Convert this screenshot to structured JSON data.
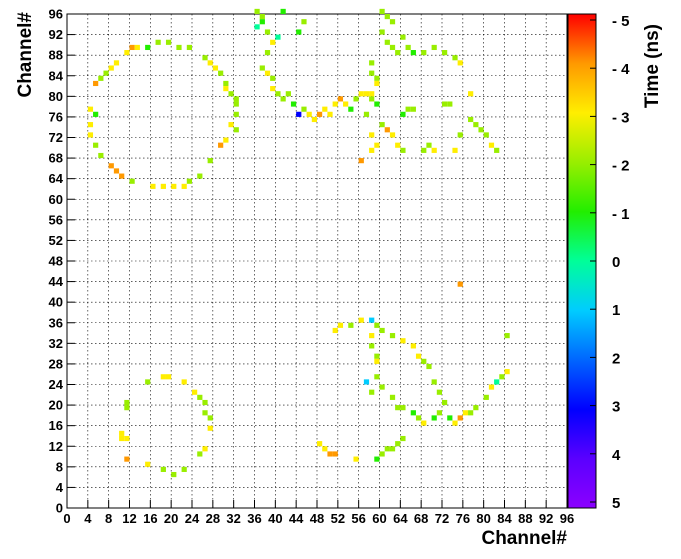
{
  "chart_data": {
    "type": "heatmap",
    "xlabel": "Channel#",
    "ylabel": "Channel#",
    "zlabel": "Time (ns)",
    "xlim": [
      0,
      96
    ],
    "ylim": [
      0,
      96
    ],
    "x_ticks": [
      "0",
      "4",
      "8",
      "12",
      "16",
      "20",
      "24",
      "28",
      "32",
      "36",
      "40",
      "44",
      "48",
      "52",
      "56",
      "60",
      "64",
      "68",
      "72",
      "76",
      "80",
      "84",
      "88",
      "92",
      "96"
    ],
    "y_ticks": [
      "0",
      "4",
      "8",
      "12",
      "16",
      "20",
      "24",
      "28",
      "32",
      "36",
      "40",
      "44",
      "48",
      "52",
      "56",
      "60",
      "64",
      "68",
      "72",
      "76",
      "80",
      "84",
      "88",
      "92",
      "96"
    ],
    "z_ticks": [
      {
        "label": "- 5",
        "value": -5
      },
      {
        "label": "- 4",
        "value": -4
      },
      {
        "label": "- 3",
        "value": -3
      },
      {
        "label": "- 2",
        "value": -2
      },
      {
        "label": "- 1",
        "value": -1
      },
      {
        "label": "0",
        "value": 0
      },
      {
        "label": "1",
        "value": 1
      },
      {
        "label": "2",
        "value": 2
      },
      {
        "label": "3",
        "value": 3
      },
      {
        "label": "4",
        "value": 4
      },
      {
        "label": "5",
        "value": 5
      }
    ],
    "zlim": [
      5,
      -5
    ],
    "grid": true,
    "colorscale": [
      "#8b00ff",
      "#5a00ff",
      "#0000ff",
      "#0066ff",
      "#00ccff",
      "#00ff99",
      "#22ee00",
      "#99ee00",
      "#ffee00",
      "#ff9900",
      "#ff0000"
    ],
    "cells": [
      [
        11,
        9,
        -4
      ],
      [
        10,
        13,
        -3
      ],
      [
        10,
        14,
        -3
      ],
      [
        11,
        13,
        -3
      ],
      [
        15,
        8,
        -3
      ],
      [
        18,
        7,
        -2
      ],
      [
        20,
        6,
        -2
      ],
      [
        22,
        7,
        -2
      ],
      [
        11,
        19,
        -2
      ],
      [
        11,
        20,
        -2
      ],
      [
        15,
        24,
        -2
      ],
      [
        18,
        25,
        -3
      ],
      [
        19,
        25,
        -3
      ],
      [
        22,
        24,
        -3
      ],
      [
        24,
        22,
        -3
      ],
      [
        25,
        21,
        -2
      ],
      [
        26,
        20,
        -2
      ],
      [
        26,
        18,
        -2
      ],
      [
        27,
        17,
        -2
      ],
      [
        27,
        15,
        -3
      ],
      [
        25,
        10,
        -2
      ],
      [
        26,
        11,
        -3
      ],
      [
        5,
        82,
        -4
      ],
      [
        6,
        83,
        -2
      ],
      [
        7,
        84,
        -2
      ],
      [
        8,
        85,
        -3
      ],
      [
        9,
        86,
        -3
      ],
      [
        11,
        88,
        -3
      ],
      [
        12,
        89,
        -4
      ],
      [
        13,
        89,
        -3
      ],
      [
        15,
        89,
        -1
      ],
      [
        17,
        90,
        -2
      ],
      [
        19,
        90,
        -2
      ],
      [
        21,
        89,
        -2
      ],
      [
        23,
        89,
        -2
      ],
      [
        26,
        87,
        -2
      ],
      [
        27,
        86,
        -3
      ],
      [
        28,
        85,
        -3
      ],
      [
        29,
        84,
        -2
      ],
      [
        30,
        82,
        -2
      ],
      [
        30,
        81,
        -3
      ],
      [
        31,
        80,
        -2
      ],
      [
        32,
        79,
        -2
      ],
      [
        32,
        78,
        -2
      ],
      [
        32,
        76,
        -2
      ],
      [
        31,
        74,
        -3
      ],
      [
        32,
        73,
        -2
      ],
      [
        30,
        71,
        -3
      ],
      [
        29,
        70,
        -4
      ],
      [
        27,
        67,
        -2
      ],
      [
        25,
        64,
        -2
      ],
      [
        23,
        63,
        -2
      ],
      [
        22,
        62,
        -3
      ],
      [
        20,
        62,
        -3
      ],
      [
        18,
        62,
        -3
      ],
      [
        16,
        62,
        -3
      ],
      [
        12,
        63,
        -2
      ],
      [
        10,
        64,
        -4
      ],
      [
        9,
        65,
        -4
      ],
      [
        8,
        66,
        -4
      ],
      [
        6,
        68,
        -2
      ],
      [
        5,
        70,
        -2
      ],
      [
        4,
        72,
        -3
      ],
      [
        4,
        74,
        -3
      ],
      [
        4,
        77,
        -3
      ],
      [
        5,
        76,
        -1
      ],
      [
        36,
        96,
        -2
      ],
      [
        37,
        95,
        -2
      ],
      [
        37,
        94,
        -1
      ],
      [
        36,
        93,
        0
      ],
      [
        38,
        92,
        -2
      ],
      [
        39,
        90,
        -3
      ],
      [
        38,
        88,
        -2
      ],
      [
        37,
        85,
        -2
      ],
      [
        38,
        84,
        -3
      ],
      [
        39,
        83,
        -2
      ],
      [
        39,
        81,
        -3
      ],
      [
        40,
        80,
        -2
      ],
      [
        41,
        79,
        -2
      ],
      [
        42,
        80,
        -2
      ],
      [
        43,
        78,
        -1
      ],
      [
        44,
        76,
        3
      ],
      [
        45,
        77,
        -2
      ],
      [
        46,
        76,
        -3
      ],
      [
        47,
        75,
        -3
      ],
      [
        48,
        76,
        -4
      ],
      [
        49,
        77,
        -3
      ],
      [
        50,
        76,
        -3
      ],
      [
        51,
        78,
        -3
      ],
      [
        52,
        79,
        -4
      ],
      [
        53,
        78,
        -3
      ],
      [
        54,
        77,
        -1
      ],
      [
        55,
        79,
        -2
      ],
      [
        56,
        80,
        -3
      ],
      [
        57,
        80,
        -3
      ],
      [
        58,
        79,
        -2
      ],
      [
        59,
        78,
        -1
      ],
      [
        60,
        74,
        -2
      ],
      [
        61,
        73,
        -4
      ],
      [
        62,
        72,
        -3
      ],
      [
        63,
        70,
        -3
      ],
      [
        64,
        69,
        -2
      ],
      [
        64,
        76,
        -1
      ],
      [
        65,
        77,
        -2
      ],
      [
        66,
        77,
        -2
      ],
      [
        68,
        69,
        -2
      ],
      [
        69,
        70,
        -2
      ],
      [
        70,
        69,
        -3
      ],
      [
        72,
        78,
        -2
      ],
      [
        73,
        78,
        -2
      ],
      [
        74,
        69,
        -3
      ],
      [
        75,
        72,
        -2
      ],
      [
        77,
        75,
        -2
      ],
      [
        78,
        74,
        -2
      ],
      [
        79,
        73,
        -2
      ],
      [
        80,
        72,
        -2
      ],
      [
        81,
        70,
        -3
      ],
      [
        82,
        69,
        -2
      ],
      [
        77,
        80,
        -3
      ],
      [
        60,
        96,
        -2
      ],
      [
        61,
        95,
        -2
      ],
      [
        62,
        94,
        -2
      ],
      [
        60,
        92,
        -2
      ],
      [
        61,
        90,
        -2
      ],
      [
        62,
        89,
        -2
      ],
      [
        63,
        88,
        -2
      ],
      [
        64,
        91,
        -2
      ],
      [
        65,
        89,
        -2
      ],
      [
        66,
        88,
        -1
      ],
      [
        68,
        88,
        -2
      ],
      [
        70,
        89,
        -2
      ],
      [
        72,
        88,
        -2
      ],
      [
        74,
        87,
        -2
      ],
      [
        75,
        86,
        -3
      ],
      [
        58,
        86,
        -2
      ],
      [
        58,
        84,
        -2
      ],
      [
        59,
        83,
        -2
      ],
      [
        59,
        82,
        -3
      ],
      [
        58,
        80,
        -3
      ],
      [
        57,
        76,
        -2
      ],
      [
        58,
        72,
        -3
      ],
      [
        59,
        70,
        -3
      ],
      [
        58,
        69,
        -3
      ],
      [
        56,
        67,
        -4
      ],
      [
        45,
        94,
        -2
      ],
      [
        44,
        92,
        -1
      ],
      [
        41,
        96,
        -1
      ],
      [
        40,
        91,
        0
      ],
      [
        51,
        34,
        -3
      ],
      [
        52,
        35,
        -3
      ],
      [
        54,
        35,
        -2
      ],
      [
        56,
        36,
        -3
      ],
      [
        58,
        36,
        1
      ],
      [
        59,
        35,
        -2
      ],
      [
        60,
        34,
        -2
      ],
      [
        62,
        33,
        -2
      ],
      [
        64,
        32,
        -3
      ],
      [
        66,
        31,
        -3
      ],
      [
        67,
        29,
        -3
      ],
      [
        68,
        28,
        -2
      ],
      [
        69,
        27,
        -2
      ],
      [
        70,
        24,
        -2
      ],
      [
        71,
        22,
        -2
      ],
      [
        72,
        20,
        -2
      ],
      [
        71,
        18,
        -2
      ],
      [
        70,
        17,
        -1
      ],
      [
        68,
        16,
        -3
      ],
      [
        67,
        17,
        -2
      ],
      [
        66,
        18,
        -1
      ],
      [
        64,
        19,
        -2
      ],
      [
        63,
        19,
        -2
      ],
      [
        62,
        21,
        -2
      ],
      [
        60,
        23,
        -2
      ],
      [
        59,
        25,
        -2
      ],
      [
        59,
        28,
        -3
      ],
      [
        59,
        29,
        -2
      ],
      [
        58,
        31,
        -2
      ],
      [
        58,
        33,
        -3
      ],
      [
        57,
        24,
        1
      ],
      [
        58,
        22,
        -2
      ],
      [
        73,
        17,
        -1
      ],
      [
        74,
        16,
        -3
      ],
      [
        75,
        17,
        -4
      ],
      [
        76,
        18,
        -3
      ],
      [
        77,
        18,
        -2
      ],
      [
        78,
        19,
        -2
      ],
      [
        80,
        21,
        -2
      ],
      [
        81,
        23,
        -3
      ],
      [
        82,
        24,
        0
      ],
      [
        83,
        25,
        -2
      ],
      [
        84,
        26,
        -3
      ],
      [
        84,
        33,
        -2
      ],
      [
        75,
        43,
        -4
      ],
      [
        48,
        12,
        -3
      ],
      [
        49,
        11,
        -3
      ],
      [
        50,
        10,
        -4
      ],
      [
        51,
        10,
        -4
      ],
      [
        55,
        9,
        -3
      ],
      [
        59,
        9,
        -1
      ],
      [
        60,
        10,
        -2
      ],
      [
        61,
        11,
        -2
      ],
      [
        62,
        11,
        -2
      ],
      [
        63,
        12,
        -2
      ],
      [
        64,
        13,
        -2
      ]
    ]
  }
}
